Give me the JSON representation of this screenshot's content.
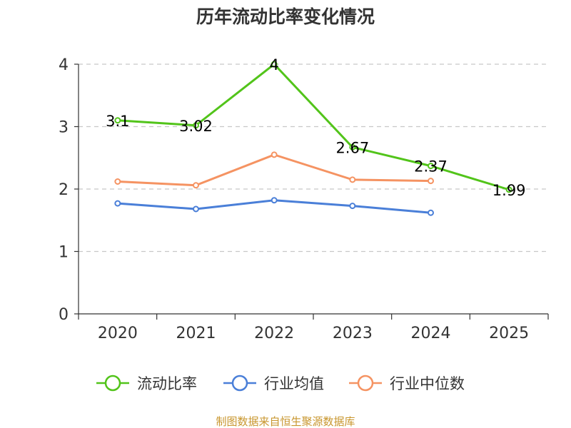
{
  "chart_data": {
    "type": "line",
    "title": "历年流动比率变化情况",
    "categories": [
      "2020",
      "2021",
      "2022",
      "2023",
      "2024",
      "2025"
    ],
    "yticks": [
      0,
      1,
      2,
      3,
      4
    ],
    "ylim": [
      0,
      4
    ],
    "grid": true,
    "xlabel": "",
    "ylabel": "",
    "legend_position": "bottom",
    "series": [
      {
        "name": "流动比率",
        "color": "#52c41a",
        "values": [
          3.1,
          3.02,
          4,
          2.67,
          2.37,
          1.99
        ],
        "labels": [
          "3.1",
          "3.02",
          "4",
          "2.67",
          "2.37",
          "1.99"
        ],
        "show_labels": true
      },
      {
        "name": "行业均值",
        "color": "#4a7fd8",
        "values": [
          1.77,
          1.68,
          1.82,
          1.73,
          1.62,
          null
        ],
        "show_labels": false
      },
      {
        "name": "行业中位数",
        "color": "#f59362",
        "values": [
          2.12,
          2.06,
          2.55,
          2.15,
          2.13,
          null
        ],
        "show_labels": false
      }
    ],
    "source": "制图数据来自恒生聚源数据库",
    "source_color": "#c8962e"
  }
}
